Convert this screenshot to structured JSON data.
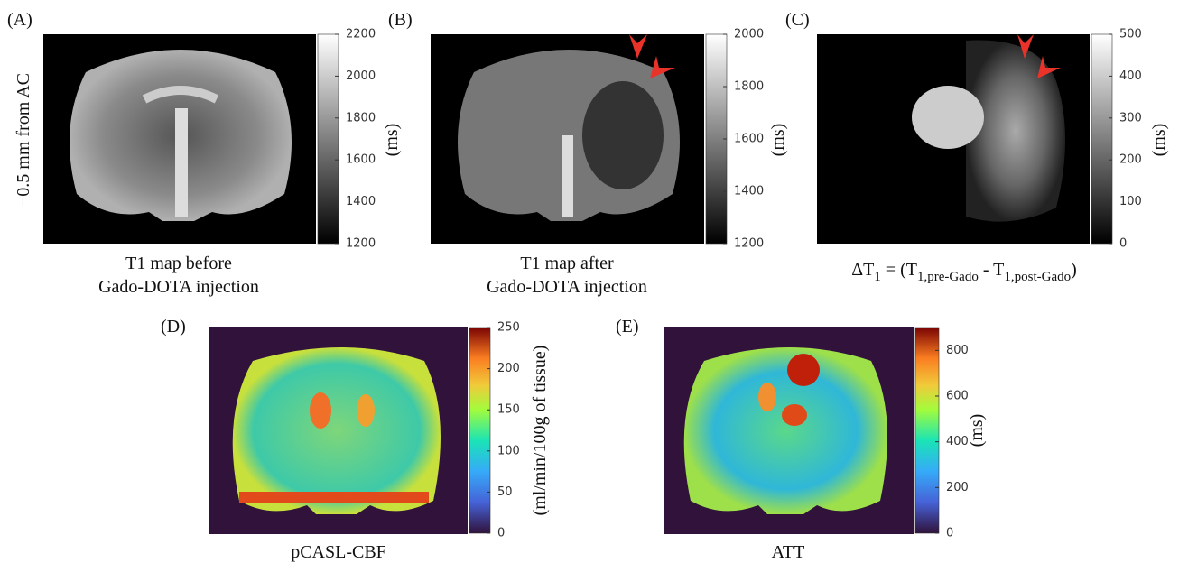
{
  "panels": [
    {
      "label": "(A)",
      "caption": [
        "T1 map before",
        "Gado-DOTA injection"
      ],
      "side_label": "−0.5 mm from AC",
      "colorbar": {
        "label": "(ms)",
        "lim": [
          1200,
          2200
        ],
        "ticks": [
          1200,
          1400,
          1600,
          1800,
          2000,
          2200
        ]
      }
    },
    {
      "label": "(B)",
      "caption": [
        "T1 map after",
        "Gado-DOTA injection"
      ],
      "colorbar": {
        "label": "(ms)",
        "lim": [
          1200,
          2000
        ],
        "ticks": [
          1200,
          1400,
          1600,
          1800,
          2000
        ]
      }
    },
    {
      "label": "(C)",
      "caption_parts": [
        "ΔT",
        "1",
        " = (T",
        "1,pre-Gado",
        " - T",
        "1,post-Gado",
        ")"
      ],
      "colorbar": {
        "label": "(ms)",
        "lim": [
          0,
          500
        ],
        "ticks": [
          0,
          100,
          200,
          300,
          400,
          500
        ]
      }
    },
    {
      "label": "(D)",
      "caption": [
        "pCASL-CBF"
      ],
      "colorbar": {
        "label": "(ml/min/100g of tissue)",
        "lim": [
          0,
          250
        ],
        "ticks": [
          0,
          50,
          100,
          150,
          200,
          250
        ]
      }
    },
    {
      "label": "(E)",
      "caption": [
        "ATT"
      ],
      "colorbar": {
        "label": "(ms)",
        "lim": [
          0,
          900
        ],
        "ticks": [
          0,
          200,
          400,
          600,
          800
        ]
      }
    }
  ]
}
